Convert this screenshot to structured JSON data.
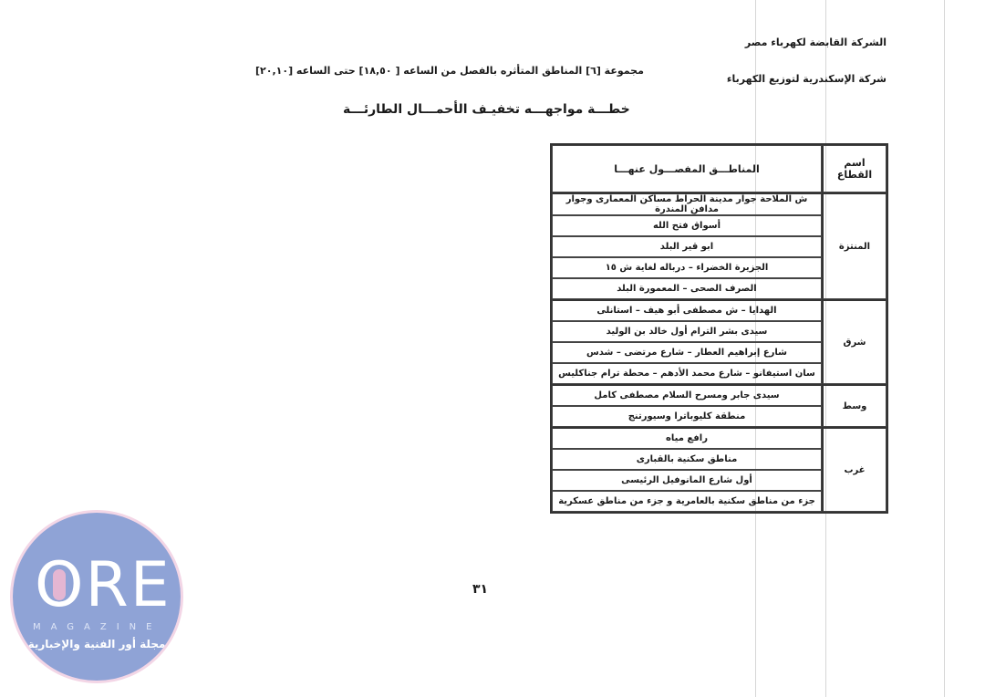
{
  "header": {
    "company_holding": "الشركة القابضة لكهرباء مصر",
    "company_local": "شركة الإسكندرية لتوزيع الكهرباء",
    "group_line": "مجموعة [٦] المناطق المتأثره بالفصل من الساعه [ ١٨,٥٠] حتى الساعه [٢٠,١٠]",
    "title": "خطـــة مواجهـــه تخفيـف الأحمـــال الطارئـــة"
  },
  "table": {
    "headers": {
      "sector": "اسم القطاع",
      "areas": "المناطـــق المفصـــول عنهـــا"
    },
    "groups": [
      {
        "sector": "المنتزة",
        "areas": [
          "ش الملاحة جوار مدينة الحراط مساكن المعمارى وجوار مدافن المندرة",
          "أسواق فتح الله",
          "ابو قير البلد",
          "الجزيرة الخضراء – درباله لغاية ش ١٥",
          "الصرف الصحى – المعمورة البلد"
        ]
      },
      {
        "sector": "شرق",
        "areas": [
          "الهدايا – ش مصطفى أبو هيف – استانلى",
          "سيدى بشر الترام أول خالد بن الوليد",
          "شارع إبراهيم العطار – شارع مرتضى – شدس",
          "سان استيفانو – شارع محمد الأدهم – محطة ترام جناكليس"
        ]
      },
      {
        "sector": "وسط",
        "areas": [
          "سيدى جابر ومسرح السلام مصطفى كامل",
          "منطقة كليوباترا وسيورتنج"
        ]
      },
      {
        "sector": "غرب",
        "areas": [
          "رافع مياه",
          "مناطق سكنية بالقبارى",
          "أول شارع المانوفيل الرئيسى",
          "جزء من مناطق سكنية بالعامرية و جزء من مناطق عسكرية"
        ]
      }
    ]
  },
  "page_number": "٣١",
  "watermark": {
    "logo_text": "ORE",
    "sub": "MAGAZINE",
    "arabic": "مجلة أور الفنية والإخبارية"
  }
}
